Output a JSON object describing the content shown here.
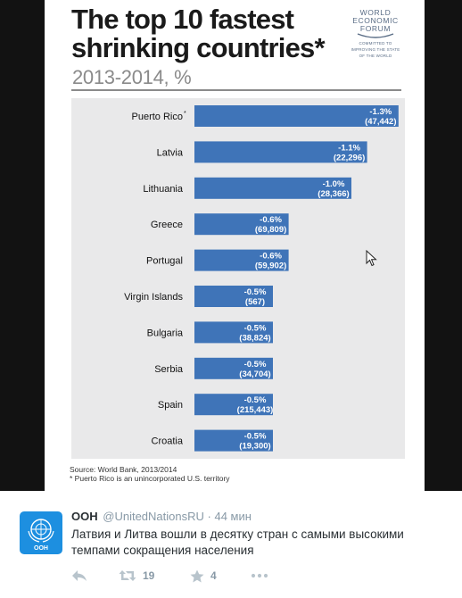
{
  "infographic": {
    "title": "The top 10 fastest shrinking countries*",
    "subtitle": "2013-2014, %",
    "logo": {
      "name_lines": [
        "WORLD",
        "ECONOMIC",
        "FORUM"
      ],
      "tagline_lines": [
        "COMMITTED TO",
        "IMPROVING THE STATE",
        "OF THE WORLD"
      ]
    },
    "source": "Source: World Bank, 2013/2014",
    "footnote": "* Puerto Rico is an unincorporated U.S. territory"
  },
  "chart_data": {
    "type": "bar",
    "orientation": "horizontal",
    "categories": [
      "Puerto Rico",
      "Latvia",
      "Lithuania",
      "Greece",
      "Portugal",
      "Virgin Islands",
      "Bulgaria",
      "Serbia",
      "Spain",
      "Croatia"
    ],
    "category_marks": [
      "*",
      "",
      "",
      "",
      "",
      "",
      "",
      "",
      "",
      ""
    ],
    "values": [
      -1.3,
      -1.1,
      -1.0,
      -0.6,
      -0.6,
      -0.5,
      -0.5,
      -0.5,
      -0.5,
      -0.5
    ],
    "value_labels": [
      "-1.3%",
      "-1.1%",
      "-1.0%",
      "-0.6%",
      "-0.6%",
      "-0.5%",
      "-0.5%",
      "-0.5%",
      "-0.5%",
      "-0.5%"
    ],
    "population_change_labels": [
      "(47,442)",
      "(22,296)",
      "(28,366)",
      "(69,809)",
      "(59,902)",
      "(567)",
      "(38,824)",
      "(34,704)",
      "(215,443)",
      "(19,300)"
    ],
    "bar_color": "#3f74b8",
    "panel_color": "#e9e9ea",
    "grid": false,
    "legend": "none"
  },
  "tweet": {
    "name": "ООН",
    "handle": "@UnitedNationsRU",
    "separator": "·",
    "time": "44 мин",
    "text": "Латвия и Литва вошли в десятку стран с самыми высокими темпами сокращения населения",
    "avatar_label": "ООН",
    "avatar_color": "#1d8fe0",
    "actions": [
      {
        "icon": "reply-icon",
        "count": ""
      },
      {
        "icon": "retweet-icon",
        "count": "19"
      },
      {
        "icon": "star-icon",
        "count": "4"
      },
      {
        "icon": "more-icon",
        "count": ""
      }
    ]
  }
}
